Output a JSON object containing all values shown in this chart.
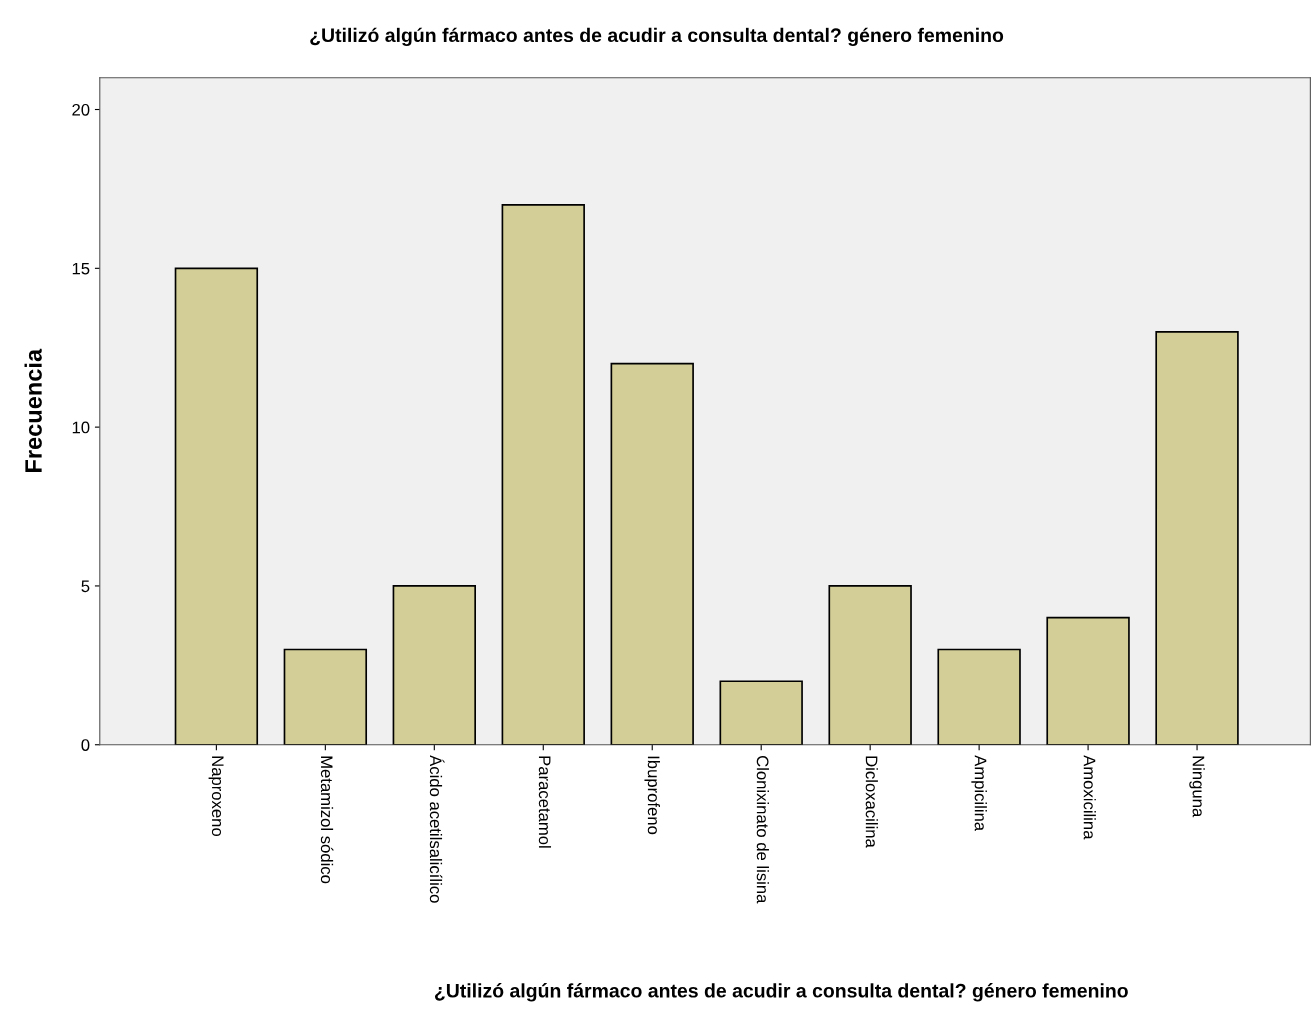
{
  "chart_data": {
    "type": "bar",
    "title": "¿Utilizó algún fármaco antes de acudir a consulta dental? género femenino",
    "xlabel": "¿Utilizó algún fármaco antes de acudir a consulta dental? género femenino",
    "ylabel": "Frecuencia",
    "categories": [
      "Naproxeno",
      "Metamizol sódico",
      "Ácido acetilsalicílico",
      "Paracetamol",
      "Ibuprofeno",
      "Clonixinato de lisina",
      "Dicloxacilina",
      "Ampicilina",
      "Amoxicilina",
      "Ninguna"
    ],
    "values": [
      15,
      3,
      5,
      17,
      12,
      2,
      5,
      3,
      4,
      13
    ],
    "color": "#d3ce97",
    "ylim": [
      0,
      21
    ],
    "yticks": [
      0,
      5,
      10,
      15,
      20
    ],
    "grid": false,
    "legend": false
  }
}
